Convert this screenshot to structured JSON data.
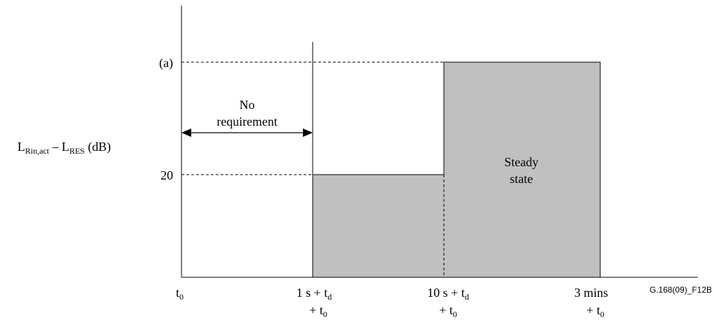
{
  "y_axis": {
    "label_main_1": "L",
    "label_sub_1": "Rin,act",
    "label_dash": " – ",
    "label_main_2": "L",
    "label_sub_2": "RES",
    "label_unit": " (dB)",
    "tick_top": "(a)",
    "tick_20": "20"
  },
  "x_axis": {
    "t0_main": "t",
    "t0_sub": "0",
    "tick1_line1_main": "1 s + t",
    "tick1_line1_sub": "d",
    "tick1_line2_main": "+ t",
    "tick1_line2_sub": "0",
    "tick2_line1_main": "10 s + t",
    "tick2_line1_sub": "d",
    "tick2_line2_main": "+ t",
    "tick2_line2_sub": "0",
    "tick3_line1": "3 mins",
    "tick3_line2_main": "+ t",
    "tick3_line2_sub": "0"
  },
  "annotations": {
    "no_req_line1": "No",
    "no_req_line2": "requirement",
    "steady_line1": "Steady",
    "steady_line2": "state"
  },
  "figure_id": "G.168(09)_F12B",
  "colors": {
    "fill": "#c0c0c0",
    "stroke": "#000000"
  }
}
